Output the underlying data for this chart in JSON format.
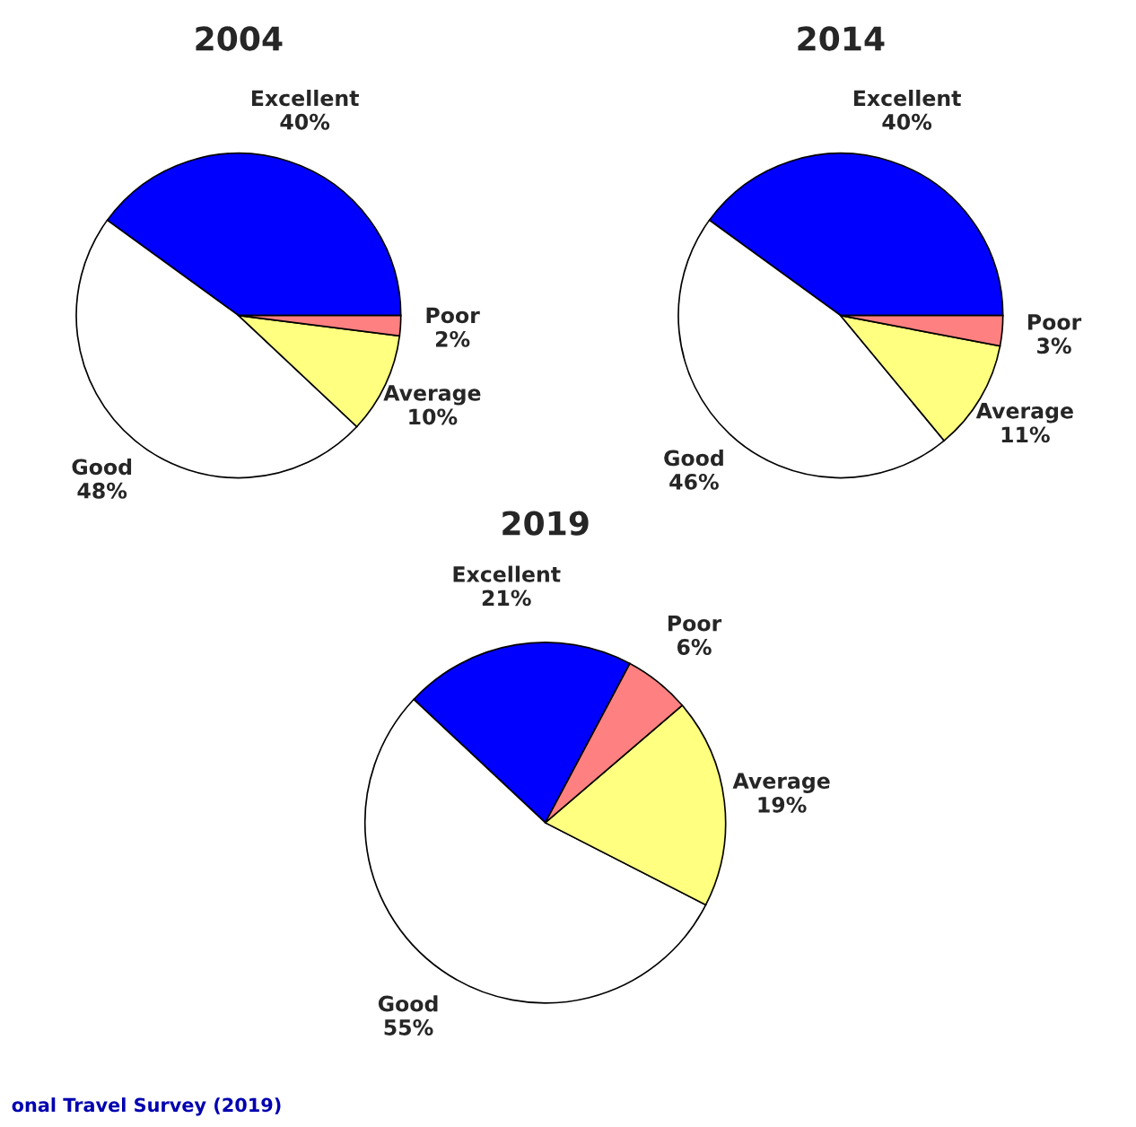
{
  "chart_data": [
    {
      "type": "pie",
      "title": "2004",
      "categories": [
        "Excellent",
        "Good",
        "Average",
        "Poor"
      ],
      "values": [
        40,
        48,
        10,
        2
      ],
      "value_labels": [
        "40%",
        "48%",
        "10%",
        "2%"
      ],
      "colors": [
        "#0000ff",
        "#ffffff",
        "#ffff80",
        "#ff8080"
      ]
    },
    {
      "type": "pie",
      "title": "2014",
      "categories": [
        "Excellent",
        "Good",
        "Average",
        "Poor"
      ],
      "values": [
        40,
        46,
        11,
        3
      ],
      "value_labels": [
        "40%",
        "46%",
        "11%",
        "3%"
      ],
      "colors": [
        "#0000ff",
        "#ffffff",
        "#ffff80",
        "#ff8080"
      ]
    },
    {
      "type": "pie",
      "title": "2019",
      "categories": [
        "Excellent",
        "Good",
        "Average",
        "Poor"
      ],
      "values": [
        21,
        55,
        19,
        6
      ],
      "value_labels": [
        "21%",
        "55%",
        "19%",
        "6%"
      ],
      "colors": [
        "#0000ff",
        "#ffffff",
        "#ffff80",
        "#ff8080"
      ],
      "annotations": [
        "onal Travel Survey (2019)"
      ]
    }
  ]
}
